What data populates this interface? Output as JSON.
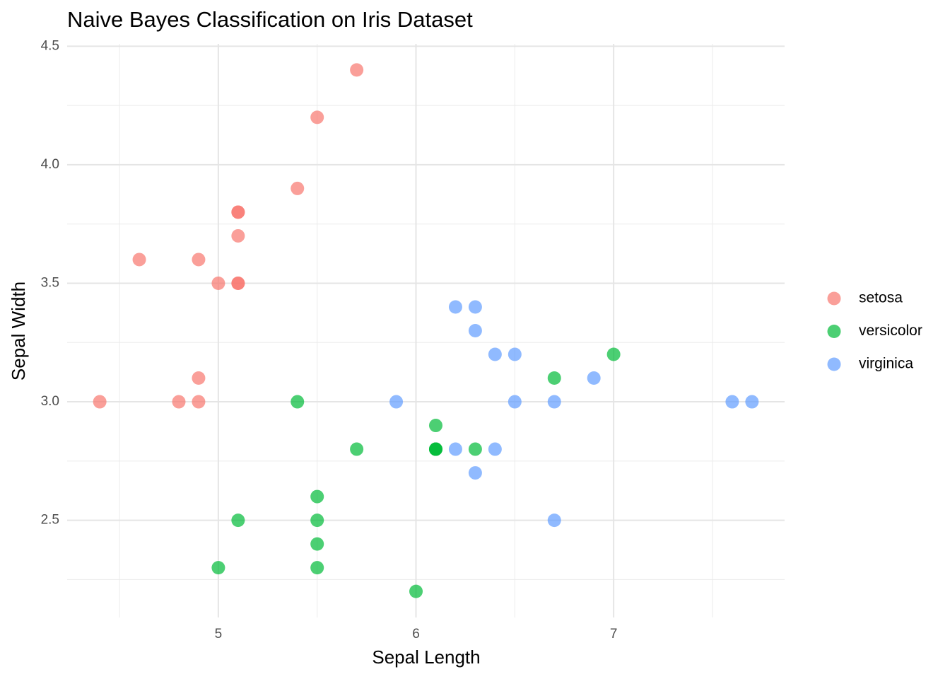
{
  "chart_data": {
    "type": "scatter",
    "title": "Naive Bayes Classification on Iris Dataset",
    "x_label": "Sepal Length",
    "y_label": "Sepal Width",
    "xlim": [
      4.235,
      7.865
    ],
    "ylim": [
      2.09,
      4.51
    ],
    "xticks": [
      5,
      6,
      7
    ],
    "yticks": [
      2.5,
      {
        "value": 3,
        "label": "3.0"
      },
      3.5,
      {
        "value": 4,
        "label": "4.0"
      },
      4.5
    ],
    "xminor": [
      4.5,
      5.5,
      6.5,
      7.5
    ],
    "yminor": [
      2.25,
      2.75,
      3.25,
      3.75,
      4.25
    ],
    "grid": true,
    "legend": "right",
    "opacity": 0.7,
    "series": [
      {
        "name": "setosa",
        "color": "#F8766D",
        "x": [
          5.7,
          5.5,
          5.4,
          5.1,
          5.1,
          5.1,
          4.6,
          4.9,
          5.0,
          5.1,
          5.1,
          4.9,
          4.4,
          4.8,
          4.9
        ],
        "values": [
          4.4,
          4.2,
          3.9,
          3.8,
          3.8,
          3.7,
          3.6,
          3.6,
          3.5,
          3.5,
          3.5,
          3.1,
          3.0,
          3.0,
          3.0
        ]
      },
      {
        "name": "versicolor",
        "color": "#00BA38",
        "x": [
          7.0,
          6.7,
          5.4,
          6.1,
          6.1,
          6.1,
          6.1,
          5.7,
          6.3,
          5.5,
          5.1,
          5.5,
          5.5,
          5.0,
          5.5,
          6.0
        ],
        "values": [
          3.2,
          3.1,
          3.0,
          2.9,
          2.8,
          2.8,
          2.8,
          2.8,
          2.8,
          2.6,
          2.5,
          2.5,
          2.4,
          2.3,
          2.3,
          2.2
        ]
      },
      {
        "name": "virginica",
        "color": "#619CFF",
        "x": [
          6.2,
          6.3,
          6.3,
          6.4,
          6.5,
          6.9,
          5.9,
          6.5,
          6.7,
          7.6,
          7.7,
          6.2,
          6.4,
          6.3,
          6.7
        ],
        "values": [
          3.4,
          3.4,
          3.3,
          3.2,
          3.2,
          3.1,
          3.0,
          3.0,
          3.0,
          3.0,
          3.0,
          2.8,
          2.8,
          2.7,
          2.5
        ]
      }
    ]
  }
}
